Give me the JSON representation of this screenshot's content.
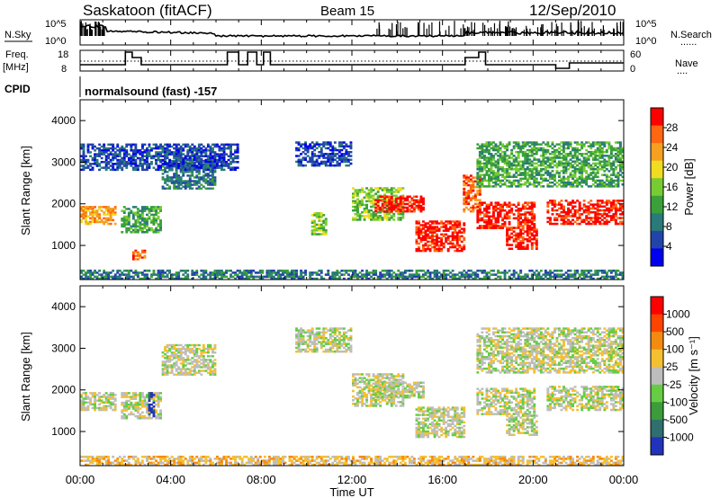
{
  "header": {
    "station": "Saskatoon (fitACF)",
    "beam": "Beam 15",
    "date": "12/Sep/2010"
  },
  "left_labels": {
    "nsky": "N.Sky",
    "freq_top": "Freq.",
    "freq_unit": "[MHz]",
    "cpid": "CPID"
  },
  "right_labels": {
    "nsearch": "N.Search",
    "nave": "Nave",
    "dots": "......",
    "dots_short": "...."
  },
  "cpid_text": "normalsound (fast) -157",
  "noise_panel": {
    "left_ticks": [
      "10^5",
      "10^0"
    ],
    "right_ticks": [
      "10^5",
      "10^0"
    ]
  },
  "freq_panel": {
    "left_ticks": [
      "18",
      "8"
    ],
    "right_ticks": [
      "60",
      "0"
    ]
  },
  "x_axis": {
    "label": "Time UT",
    "ticks": [
      "00:00",
      "04:00",
      "08:00",
      "12:00",
      "16:00",
      "20:00",
      "00:00"
    ]
  },
  "chart_data": [
    {
      "type": "heatmap",
      "name": "Power",
      "ylabel": "Slant Range [km]",
      "yticks": [
        "4000",
        "3000",
        "2000",
        "1000"
      ],
      "ylim": [
        180,
        4500
      ],
      "xlim": [
        0,
        24
      ],
      "colorbar": {
        "label": "Power [dB]",
        "ticks": [
          "28",
          "24",
          "20",
          "16",
          "12",
          "8",
          "4"
        ],
        "colors": [
          "#0000ee",
          "#2244aa",
          "#2a7a7a",
          "#3aa03a",
          "#77cc33",
          "#f0dc20",
          "#f5a020",
          "#ff6611",
          "#ff0000"
        ]
      },
      "regions": [
        {
          "t0": 0.0,
          "t1": 1.6,
          "r0": 1500,
          "r1": 1950,
          "level": 6
        },
        {
          "t0": 1.8,
          "t1": 3.6,
          "r0": 1300,
          "r1": 1950,
          "level": 3
        },
        {
          "t0": 2.3,
          "t1": 2.9,
          "r0": 650,
          "r1": 900,
          "level": 7
        },
        {
          "t0": 3.6,
          "t1": 6.0,
          "r0": 2350,
          "r1": 3100,
          "level": 2
        },
        {
          "t0": 0.0,
          "t1": 7.0,
          "r0": 2800,
          "r1": 3450,
          "level": 1
        },
        {
          "t0": 9.5,
          "t1": 12.0,
          "r0": 2900,
          "r1": 3500,
          "level": 1
        },
        {
          "t0": 10.2,
          "t1": 10.9,
          "r0": 1250,
          "r1": 1800,
          "level": 4
        },
        {
          "t0": 12.0,
          "t1": 14.3,
          "r0": 1600,
          "r1": 2400,
          "level": 4
        },
        {
          "t0": 13.0,
          "t1": 15.2,
          "r0": 1800,
          "r1": 2200,
          "level": 8
        },
        {
          "t0": 14.8,
          "t1": 17.0,
          "r0": 850,
          "r1": 1600,
          "level": 8
        },
        {
          "t0": 16.9,
          "t1": 17.7,
          "r0": 1800,
          "r1": 2700,
          "level": 7
        },
        {
          "t0": 17.5,
          "t1": 20.1,
          "r0": 1400,
          "r1": 2050,
          "level": 8
        },
        {
          "t0": 18.8,
          "t1": 20.2,
          "r0": 900,
          "r1": 1450,
          "level": 8
        },
        {
          "t0": 20.6,
          "t1": 24.0,
          "r0": 1500,
          "r1": 2100,
          "level": 8
        },
        {
          "t0": 17.5,
          "t1": 24.0,
          "r0": 2400,
          "r1": 3500,
          "level": 3
        },
        {
          "t0": 0.0,
          "t1": 24.0,
          "r0": 180,
          "r1": 420,
          "level": 2
        }
      ]
    },
    {
      "type": "heatmap",
      "name": "Velocity",
      "ylabel": "Slant Range [km]",
      "yticks": [
        "4000",
        "3000",
        "2000",
        "1000"
      ],
      "ylim": [
        180,
        4500
      ],
      "xlim": [
        0,
        24
      ],
      "colorbar": {
        "label": "Velocity [m s⁻¹]",
        "ticks": [
          "1000",
          "500",
          "100",
          "25",
          "-25",
          "-100",
          "-500",
          "-1000"
        ],
        "colors": [
          "#2233bb",
          "#2f6f6f",
          "#3c9c3c",
          "#66cc44",
          "#bdbdbd",
          "#f5c030",
          "#f58a10",
          "#ff4400",
          "#ff0000"
        ]
      },
      "regions": [
        {
          "t0": 0.0,
          "t1": 1.6,
          "r0": 1500,
          "r1": 1950,
          "level": 4
        },
        {
          "t0": 1.8,
          "t1": 3.6,
          "r0": 1300,
          "r1": 1950,
          "level": 4
        },
        {
          "t0": 3.0,
          "t1": 3.3,
          "r0": 1350,
          "r1": 1950,
          "level": 0
        },
        {
          "t0": 3.6,
          "t1": 6.0,
          "r0": 2350,
          "r1": 3100,
          "level": 4
        },
        {
          "t0": 9.5,
          "t1": 12.0,
          "r0": 2900,
          "r1": 3500,
          "level": 4
        },
        {
          "t0": 12.0,
          "t1": 14.3,
          "r0": 1600,
          "r1": 2400,
          "level": 4
        },
        {
          "t0": 13.0,
          "t1": 15.2,
          "r0": 1800,
          "r1": 2200,
          "level": 4
        },
        {
          "t0": 14.8,
          "t1": 17.0,
          "r0": 850,
          "r1": 1600,
          "level": 4
        },
        {
          "t0": 17.5,
          "t1": 20.1,
          "r0": 1400,
          "r1": 2050,
          "level": 4
        },
        {
          "t0": 18.8,
          "t1": 20.2,
          "r0": 900,
          "r1": 1450,
          "level": 4
        },
        {
          "t0": 20.6,
          "t1": 24.0,
          "r0": 1500,
          "r1": 2100,
          "level": 4
        },
        {
          "t0": 17.5,
          "t1": 24.0,
          "r0": 2400,
          "r1": 3500,
          "level": 4
        },
        {
          "t0": 0.0,
          "t1": 24.0,
          "r0": 180,
          "r1": 420,
          "level": 5
        }
      ]
    }
  ]
}
